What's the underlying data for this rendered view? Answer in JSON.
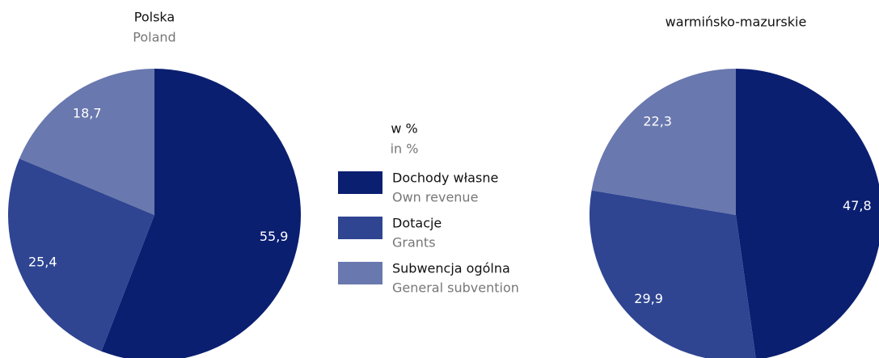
{
  "chart_data": [
    {
      "type": "pie",
      "title": "Polska",
      "subtitle": "Poland",
      "values": [
        55.9,
        25.4,
        18.7
      ],
      "value_labels": [
        "55,9",
        "25,4",
        "18,7"
      ],
      "colors": [
        "#0b1f71",
        "#2f4592",
        "#6978ae"
      ]
    },
    {
      "type": "pie",
      "title": "warmińsko-mazurskie",
      "values": [
        47.8,
        29.9,
        22.3
      ],
      "value_labels": [
        "47,8",
        "29,9",
        "22,3"
      ],
      "colors": [
        "#0b1f71",
        "#2f4592",
        "#6978ae"
      ]
    }
  ],
  "legend": {
    "title": "w %",
    "subtitle": "in %",
    "items": [
      {
        "label": "Dochody własne",
        "sublabel": "Own revenue"
      },
      {
        "label": "Dotacje",
        "sublabel": "Grants"
      },
      {
        "label": "Subwencja ogólna",
        "sublabel": "General subvention"
      }
    ]
  }
}
